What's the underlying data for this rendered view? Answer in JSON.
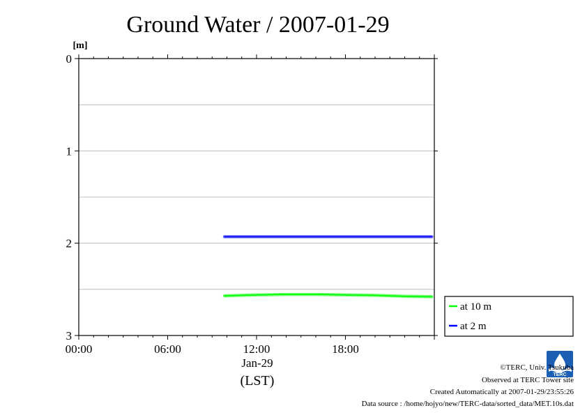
{
  "chart_data": {
    "type": "line",
    "title": "Ground Water / 2007-01-29",
    "ylabel": "[m]",
    "xlabel": "(LST)",
    "date_label": "Jan-29",
    "ylim": [
      0,
      3
    ],
    "y_inverted": true,
    "yticks": [
      "0",
      "1",
      "2",
      "3"
    ],
    "ygrid": [
      0.5,
      1,
      1.5,
      2,
      2.5
    ],
    "xlim": [
      "00:00",
      "24:00"
    ],
    "xticks": [
      "00:00",
      "06:00",
      "12:00",
      "18:00"
    ],
    "grid": true,
    "legend_position": "outside-right-bottom",
    "series": [
      {
        "name": "at 10 m",
        "color": "#00ff00",
        "x": [
          "09:50",
          "12:00",
          "14:00",
          "16:00",
          "18:00",
          "20:00",
          "22:00",
          "23:50"
        ],
        "y": [
          2.57,
          2.56,
          2.555,
          2.555,
          2.56,
          2.565,
          2.575,
          2.58
        ]
      },
      {
        "name": "at 2 m",
        "color": "#0000ff",
        "x": [
          "09:50",
          "12:00",
          "14:00",
          "16:00",
          "18:00",
          "20:00",
          "22:00",
          "23:50"
        ],
        "y": [
          1.93,
          1.93,
          1.93,
          1.93,
          1.93,
          1.93,
          1.93,
          1.93
        ]
      }
    ]
  },
  "footer": {
    "copyright": "©TERC, Univ. Tsukuba",
    "observed": "Observed at TERC Tower site",
    "created": "Created Automatically at 2007-01-29/23:55:26",
    "source": "Data source : /home/hojyo/new/TERC-data/sorted_data/MET.10s.dat"
  },
  "logo": {
    "text": "TERC",
    "color": "#1a5fb4",
    "icon": "terc-logo-icon"
  }
}
